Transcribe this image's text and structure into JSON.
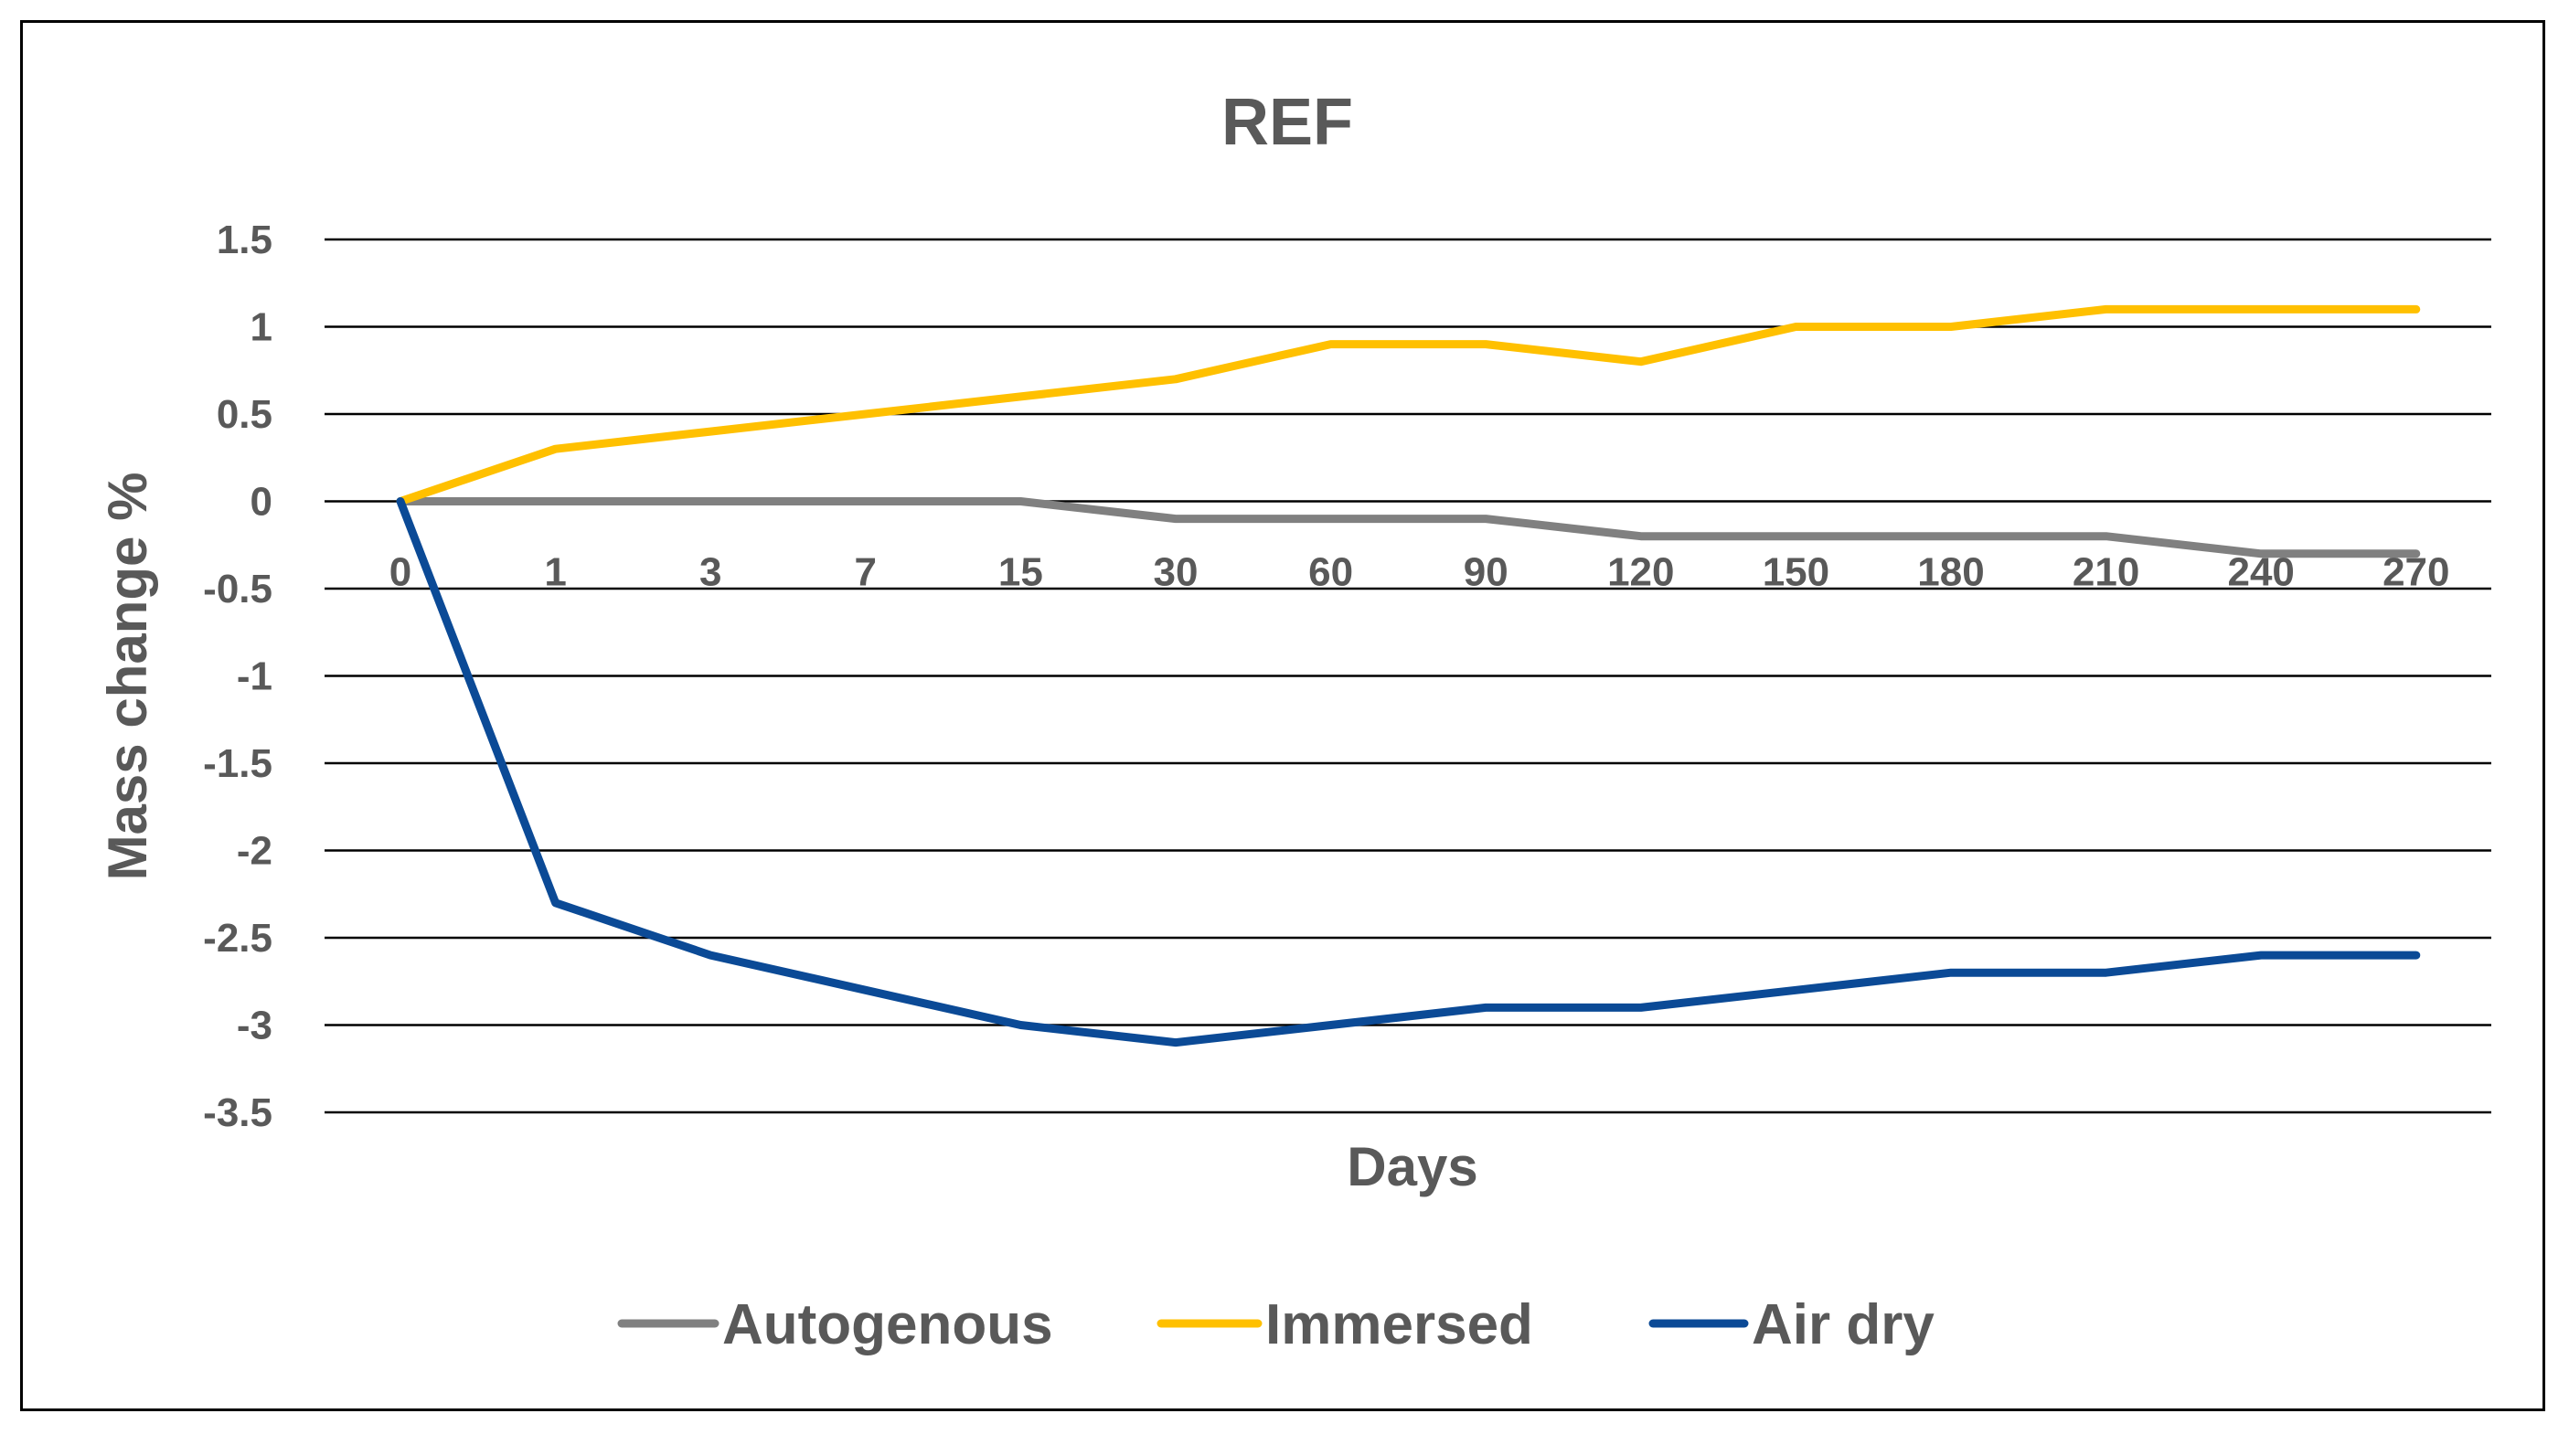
{
  "chart_data": {
    "type": "line",
    "title": "REF",
    "xlabel": "Days",
    "ylabel": "Mass change %",
    "categories": [
      "0",
      "1",
      "3",
      "7",
      "15",
      "30",
      "60",
      "90",
      "120",
      "150",
      "180",
      "210",
      "240",
      "270"
    ],
    "ylim": [
      -3.5,
      1.5
    ],
    "yticks": [
      1.5,
      1,
      0.5,
      0,
      -0.5,
      -1,
      -1.5,
      -2,
      -2.5,
      -3,
      -3.5
    ],
    "ytick_labels": [
      "1.5",
      "1",
      "0.5",
      "0",
      "-0.5",
      "-1",
      "-1.5",
      "-2",
      "-2.5",
      "-3",
      "-3.5"
    ],
    "grid": true,
    "legend_position": "bottom",
    "series": [
      {
        "name": "Autogenous",
        "color": "#808080",
        "values": [
          0,
          0,
          0,
          0,
          0,
          -0.1,
          -0.1,
          -0.1,
          -0.2,
          -0.2,
          -0.2,
          -0.2,
          -0.3,
          -0.3
        ]
      },
      {
        "name": "Immersed",
        "color": "#FFC000",
        "values": [
          0,
          0.3,
          0.4,
          0.5,
          0.6,
          0.7,
          0.9,
          0.9,
          0.8,
          1.0,
          1.0,
          1.1,
          1.1,
          1.1
        ]
      },
      {
        "name": "Air dry",
        "color": "#0B4A96",
        "values": [
          0,
          -2.3,
          -2.6,
          -2.8,
          -3.0,
          -3.1,
          -3.0,
          -2.9,
          -2.9,
          -2.8,
          -2.7,
          -2.7,
          -2.6,
          -2.6
        ]
      }
    ]
  }
}
